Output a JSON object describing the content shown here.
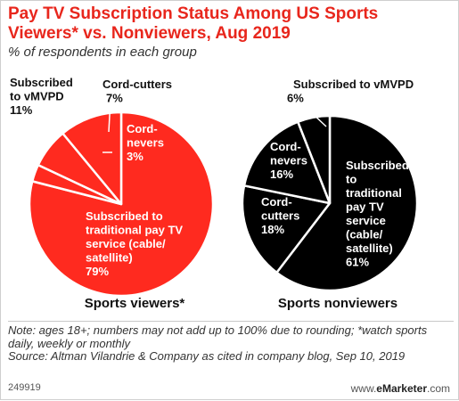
{
  "header": {
    "title": "Pay TV Subscription Status Among US Sports Viewers* vs. Nonviewers, Aug 2019",
    "subtitle": "% of respondents in each group"
  },
  "chart_data": [
    {
      "type": "pie",
      "title": "Sports viewers*",
      "colors": {
        "fill": "#ff2a1f",
        "line": "#ffffff"
      },
      "slices": [
        {
          "label": "Subscribed to traditional pay TV service (cable/ satellite)",
          "value": 79,
          "display": "79%"
        },
        {
          "label": "Cord-nevers",
          "value": 3,
          "display": "3%"
        },
        {
          "label": "Cord-cutters",
          "value": 7,
          "display": "7%"
        },
        {
          "label": "Subscribed to vMVPD",
          "value": 11,
          "display": "11%"
        }
      ]
    },
    {
      "type": "pie",
      "title": "Sports nonviewers",
      "colors": {
        "fill": "#000000",
        "line": "#ffffff"
      },
      "slices": [
        {
          "label": "Subscribed to traditional pay TV service (cable/ satellite)",
          "value": 61,
          "display": "61%"
        },
        {
          "label": "Cord-cutters",
          "value": 18,
          "display": "18%"
        },
        {
          "label": "Cord-nevers",
          "value": 16,
          "display": "16%"
        },
        {
          "label": "Subscribed to vMVPD",
          "value": 6,
          "display": "6%"
        }
      ]
    }
  ],
  "notes": {
    "line1": "Note: ages 18+; numbers may not add up to 100% due to rounding; *watch sports daily, weekly or monthly",
    "line2": "Source: Altman Vilandrie & Company as cited in company blog, Sep 10, 2019"
  },
  "footer": {
    "chart_id": "249919",
    "brand_prefix": "www.",
    "brand_name": "eMarketer",
    "brand_suffix": ".com"
  }
}
